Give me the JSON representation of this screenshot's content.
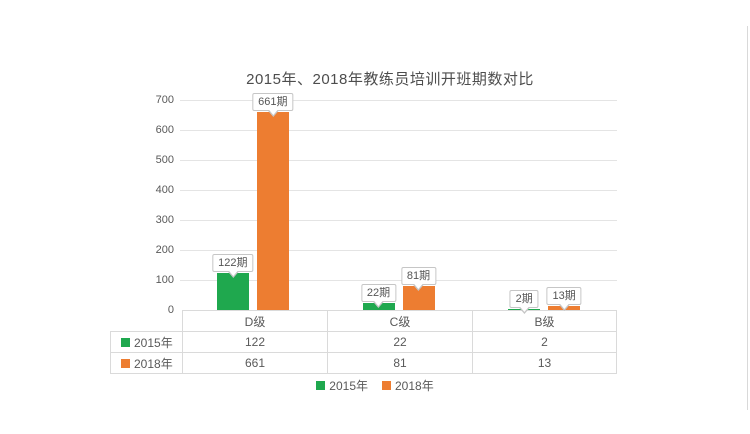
{
  "chart_data": {
    "type": "bar",
    "title": "2015年、2018年教练员培训开班期数对比",
    "categories": [
      "D级",
      "C级",
      "B级"
    ],
    "series": [
      {
        "name": "2015年",
        "color": "#1fa84e",
        "values": [
          122,
          22,
          2
        ],
        "data_labels": [
          "122期",
          "22期",
          "2期"
        ]
      },
      {
        "name": "2018年",
        "color": "#ed7d31",
        "values": [
          661,
          81,
          13
        ],
        "data_labels": [
          "661期",
          "81期",
          "13期"
        ]
      }
    ],
    "ylim": [
      0,
      700
    ],
    "ytick_interval": 100,
    "yticks": [
      "700",
      "600",
      "500",
      "400",
      "300",
      "200",
      "100",
      "0"
    ],
    "grid": "horizontal-light",
    "legend_position": "bottom",
    "has_data_table": true
  },
  "colors": {
    "series_2015": "#1fa84e",
    "series_2018": "#ed7d31",
    "gridline": "#e4e4e4",
    "table_border": "#dadada",
    "axis_text": "#595959",
    "title_text": "#4d4d4d",
    "callout_border": "#c6c6c6"
  }
}
